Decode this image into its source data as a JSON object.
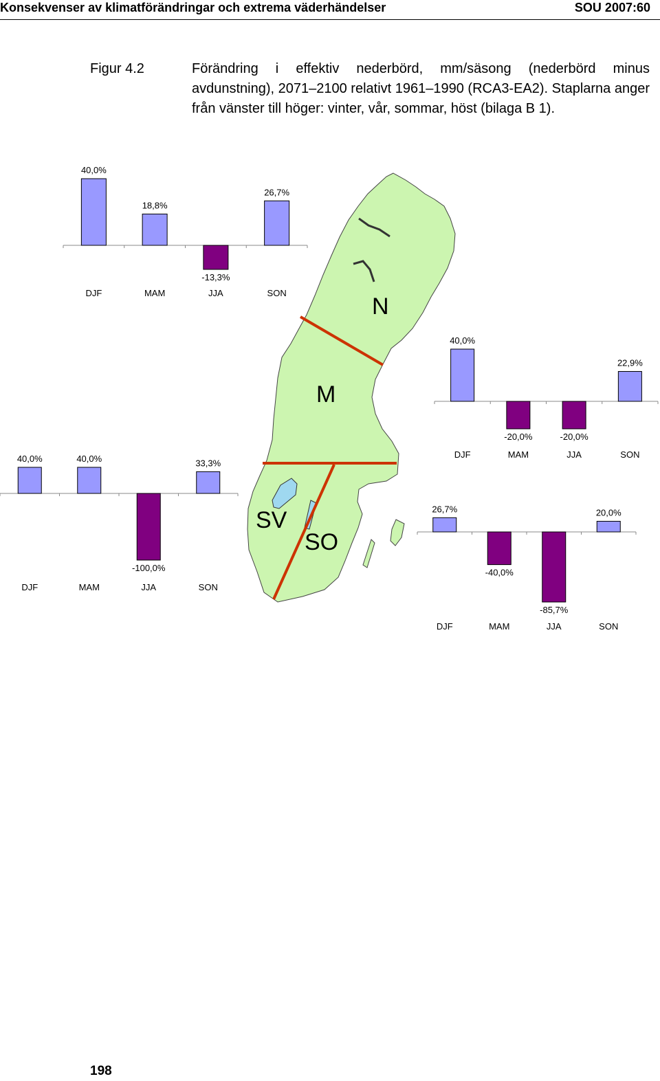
{
  "header": {
    "left": "Konsekvenser av klimatförändringar och extrema väderhändelser",
    "right": "SOU 2007:60"
  },
  "figure": {
    "label": "Figur 4.2",
    "caption": "Förändring i effektiv nederbörd, mm/säsong (nederbörd minus avdunstning), 2071–2100 relativt 1961–1990 (RCA3-EA2). Staplarna anger från vänster till höger: vinter, vår, sommar, höst (bilaga B 1).",
    "region_labels": [
      "N",
      "M",
      "SV",
      "SO"
    ]
  },
  "colors": {
    "positive": "#9999ff",
    "negative": "#800080",
    "land": "#ccf5b0",
    "lake": "#9fd8f0",
    "border": "#cc3300"
  },
  "chart_data": [
    {
      "type": "bar",
      "region": "N",
      "categories": [
        "DJF",
        "MAM",
        "JJA",
        "SON"
      ],
      "values": [
        40.0,
        18.8,
        -13.3,
        26.7
      ],
      "labels": [
        "40,0%",
        "18,8%",
        "-13,3%",
        "26,7%"
      ]
    },
    {
      "type": "bar",
      "region": "M",
      "categories": [
        "DJF",
        "MAM",
        "JJA",
        "SON"
      ],
      "values": [
        40.0,
        -20.0,
        -20.0,
        22.9
      ],
      "labels": [
        "40,0%",
        "-20,0%",
        "-20,0%",
        "22,9%"
      ]
    },
    {
      "type": "bar",
      "region": "SV",
      "categories": [
        "DJF",
        "MAM",
        "JJA",
        "SON"
      ],
      "values": [
        40.0,
        40.0,
        -100.0,
        33.3
      ],
      "labels": [
        "40,0%",
        "40,0%",
        "-100,0%",
        "33,3%"
      ]
    },
    {
      "type": "bar",
      "region": "SO",
      "categories": [
        "DJF",
        "MAM",
        "JJA",
        "SON"
      ],
      "values": [
        26.7,
        -40.0,
        -85.7,
        20.0
      ],
      "labels": [
        "26,7%",
        "-40,0%",
        "-85,7%",
        "20,0%"
      ]
    }
  ],
  "page_number": "198"
}
